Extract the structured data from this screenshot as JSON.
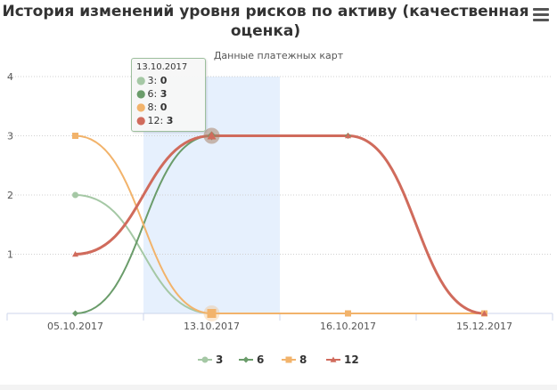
{
  "chart_data": {
    "type": "line",
    "title": "История изменений уровня рисков по активу (качественная оценка)",
    "subtitle": "Данные платежных карт",
    "categories": [
      "05.10.2017",
      "13.10.2017",
      "16.10.2017",
      "15.12.2017"
    ],
    "ylim": [
      0,
      4
    ],
    "yticks": [
      1,
      2,
      3,
      4
    ],
    "grid": true,
    "legend_position": "bottom",
    "highlighted_category": "13.10.2017",
    "series": [
      {
        "name": "3",
        "values": [
          2,
          0,
          0,
          0
        ],
        "color": "#a5c8a5",
        "marker": "circle"
      },
      {
        "name": "6",
        "values": [
          0,
          3,
          3,
          0
        ],
        "color": "#6a9c6a",
        "marker": "diamond"
      },
      {
        "name": "8",
        "values": [
          3,
          0,
          0,
          0
        ],
        "color": "#f2b36b",
        "marker": "square"
      },
      {
        "name": "12",
        "values": [
          1,
          3,
          3,
          0
        ],
        "color": "#d06b5c",
        "marker": "triangle"
      }
    ]
  },
  "tooltip": {
    "date": "13.10.2017",
    "rows": [
      {
        "label": "3:",
        "value": "0",
        "color": "#a5c8a5"
      },
      {
        "label": "6:",
        "value": "3",
        "color": "#6a9c6a"
      },
      {
        "label": "8:",
        "value": "0",
        "color": "#f2b36b"
      },
      {
        "label": "12:",
        "value": "3",
        "color": "#d06b5c"
      }
    ]
  },
  "menu_icon": "hamburger-menu-icon"
}
